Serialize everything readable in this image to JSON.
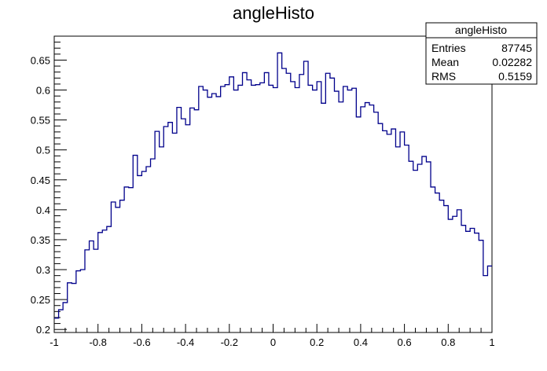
{
  "chart_data": {
    "type": "line",
    "title": "angleHisto",
    "xlabel": "",
    "ylabel": "",
    "xlim": [
      -1,
      1
    ],
    "ylim": [
      0.195,
      0.69
    ],
    "x_ticks": [
      -1,
      -0.8,
      -0.6,
      -0.4,
      -0.2,
      0,
      0.2,
      0.4,
      0.6,
      0.8,
      1
    ],
    "x_tick_labels": [
      "-1",
      "-0.8",
      "-0.6",
      "-0.4",
      "-0.2",
      "0",
      "0.2",
      "0.4",
      "0.6",
      "0.8",
      "1"
    ],
    "y_ticks": [
      0.2,
      0.25,
      0.3,
      0.35,
      0.4,
      0.45,
      0.5,
      0.55,
      0.6,
      0.65
    ],
    "y_tick_labels": [
      "0.2",
      "0.25",
      "0.3",
      "0.35",
      "0.4",
      "0.45",
      "0.5",
      "0.55",
      "0.6",
      "0.65"
    ],
    "grid": false,
    "line_color": "#00008b",
    "bin_edges_x": [
      -1,
      1
    ],
    "n_bins": 100,
    "values": [
      0.219,
      0.233,
      0.245,
      0.278,
      0.277,
      0.298,
      0.3,
      0.333,
      0.348,
      0.334,
      0.362,
      0.366,
      0.372,
      0.413,
      0.404,
      0.416,
      0.438,
      0.437,
      0.491,
      0.457,
      0.464,
      0.472,
      0.485,
      0.531,
      0.505,
      0.539,
      0.546,
      0.528,
      0.571,
      0.552,
      0.542,
      0.57,
      0.567,
      0.606,
      0.6,
      0.588,
      0.594,
      0.589,
      0.606,
      0.609,
      0.622,
      0.6,
      0.608,
      0.629,
      0.617,
      0.608,
      0.609,
      0.612,
      0.629,
      0.608,
      0.604,
      0.662,
      0.636,
      0.628,
      0.614,
      0.604,
      0.626,
      0.648,
      0.608,
      0.6,
      0.614,
      0.578,
      0.628,
      0.62,
      0.598,
      0.58,
      0.606,
      0.6,
      0.603,
      0.555,
      0.572,
      0.579,
      0.575,
      0.563,
      0.544,
      0.532,
      0.526,
      0.535,
      0.505,
      0.53,
      0.508,
      0.481,
      0.466,
      0.476,
      0.489,
      0.48,
      0.438,
      0.428,
      0.416,
      0.407,
      0.384,
      0.389,
      0.4,
      0.374,
      0.364,
      0.369,
      0.361,
      0.349,
      0.29,
      0.306
    ]
  },
  "stats_box": {
    "title": "angleHisto",
    "rows": [
      {
        "label": "Entries",
        "value": "87745"
      },
      {
        "label": "Mean",
        "value": "0.02282"
      },
      {
        "label": "RMS",
        "value": "0.5159"
      }
    ]
  }
}
